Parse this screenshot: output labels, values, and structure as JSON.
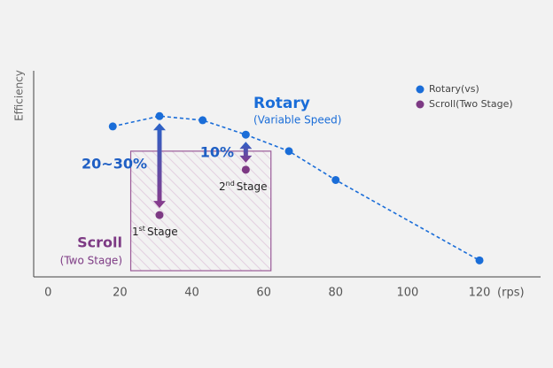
{
  "chart_data": {
    "type": "scatter",
    "y_label": "Efficiency",
    "x_unit": "(rps)",
    "xlim": [
      -4,
      137
    ],
    "ylim": [
      0,
      100
    ],
    "xticks": [
      0,
      20,
      40,
      60,
      80,
      100,
      120
    ],
    "legend": "upper right",
    "series": [
      {
        "name": "Rotary(vs)",
        "color": "#1a6dd8",
        "line": "dashed",
        "x": [
          18,
          31,
          43,
          55,
          67,
          80,
          120
        ],
        "values": [
          73,
          78,
          76,
          69,
          61,
          47,
          8
        ]
      },
      {
        "name": "Scroll(Two Stage)",
        "color": "#7d3a84",
        "x": [
          31,
          55
        ],
        "values": [
          30,
          52
        ]
      }
    ],
    "scroll_region": {
      "x": [
        23,
        62
      ],
      "y": [
        3,
        61
      ],
      "color": "#9a5a98"
    },
    "annotations": {
      "rotary_title": "Rotary",
      "rotary_subtitle": "(Variable Speed)",
      "scroll_title": "Scroll",
      "scroll_subtitle": "(Two Stage)",
      "gap_first": "20~30%",
      "gap_second": "10%",
      "stages": [
        {
          "ordinal": "1",
          "suffix": "st",
          "word": "Stage"
        },
        {
          "ordinal": "2",
          "suffix": "nd",
          "word": "Stage"
        }
      ]
    }
  }
}
